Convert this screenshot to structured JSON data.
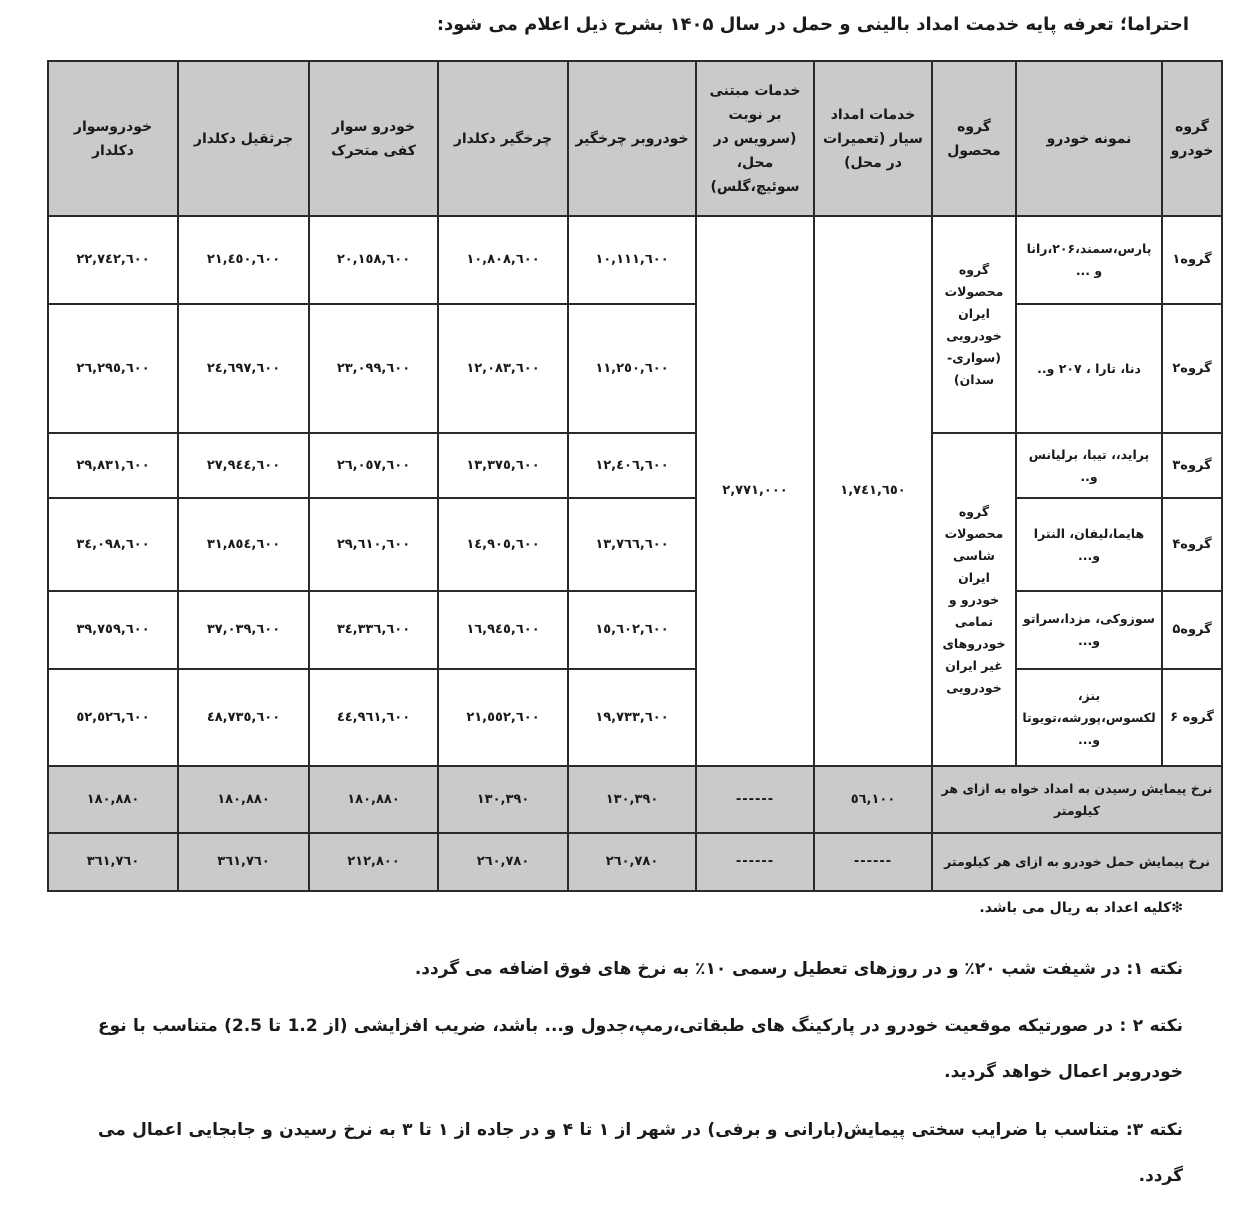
{
  "title": "احتراما؛ تعرفه پایه خدمت امداد بالینی و حمل در سال ۱۴۰۵ بشرح ذیل اعلام می شود:",
  "table": {
    "headers": [
      "گروه خودرو",
      "نمونه خودرو",
      "گروه محصول",
      "خدمات امداد سیار (تعمیرات در محل)",
      "خدمات مبتنی بر نوبت (سرویس در محل، سوئیچ،گلس)",
      "خودروبر چرخگیر",
      "چرخگیر دکلدار",
      "خودرو سوار کفی متحرک",
      "جرثقیل دکلدار",
      "خودروسوار دکلدار"
    ],
    "product_groups": [
      "گروه محصولات ایران خودرویی (سواری- سدان)",
      "گروه محصولات شاسی ایران خودرو و تمامی خودروهای غیر ایران خودرویی"
    ],
    "mobile_service": "١,٧٤١,٦٥٠",
    "scheduled_service": "٢,٧٧١,٠٠٠",
    "rows": [
      {
        "group": "گروه۱",
        "model": "پارس،سمند،۲۰۶،رانا و ...",
        "values": [
          "١٠,١١١,٦٠٠",
          "١٠,٨٠٨,٦٠٠",
          "٢٠,١٥٨,٦٠٠",
          "٢١,٤٥٠,٦٠٠",
          "٢٢,٧٤٢,٦٠٠"
        ]
      },
      {
        "group": "گروه۲",
        "model": "دنا، تارا ، ۲۰۷ و..",
        "values": [
          "١١,٢٥٠,٦٠٠",
          "١٢,٠٨٣,٦٠٠",
          "٢٣,٠٩٩,٦٠٠",
          "٢٤,٦٩٧,٦٠٠",
          "٢٦,٢٩٥,٦٠٠"
        ]
      },
      {
        "group": "گروه۳",
        "model": "پراید،، تیبا، برلیانس و..",
        "values": [
          "١٢,٤٠٦,٦٠٠",
          "١٣,٣٧٥,٦٠٠",
          "٢٦,٠٥٧,٦٠٠",
          "٢٧,٩٤٤,٦٠٠",
          "٢٩,٨٣١,٦٠٠"
        ]
      },
      {
        "group": "گروه۴",
        "model": "هایما،لیفان، النترا و...",
        "values": [
          "١٣,٧٦٦,٦٠٠",
          "١٤,٩٠٥,٦٠٠",
          "٢٩,٦١٠,٦٠٠",
          "٣١,٨٥٤,٦٠٠",
          "٣٤,٠٩٨,٦٠٠"
        ]
      },
      {
        "group": "گروه۵",
        "model": "سوزوکی، مزدا،سراتو و...",
        "values": [
          "١٥,٦٠٢,٦٠٠",
          "١٦,٩٤٥,٦٠٠",
          "٣٤,٣٣٦,٦٠٠",
          "٣٧,٠٣٩,٦٠٠",
          "٣٩,٧٥٩,٦٠٠"
        ]
      },
      {
        "group": "گروه ۶",
        "model": "بنز، لکسوس،پورشه،تویوتا و...",
        "values": [
          "١٩,٧٣٣,٦٠٠",
          "٢١,٥٥٢,٦٠٠",
          "٤٤,٩٦١,٦٠٠",
          "٤٨,٧٣٥,٦٠٠",
          "٥٢,٥٢٦,٦٠٠"
        ]
      }
    ],
    "rates": [
      {
        "label": "نرخ پیمایش رسیدن به امداد خواه به ازای هر کیلومتر",
        "mobile": "٥٦,١٠٠",
        "scheduled": "------",
        "values": [
          "١٣٠,٣٩٠",
          "١٣٠,٣٩٠",
          "١٨٠,٨٨٠",
          "١٨٠,٨٨٠",
          "١٨٠,٨٨٠"
        ]
      },
      {
        "label": "نرخ پیمایش حمل خودرو به ازای هر کیلومتر",
        "mobile": "------",
        "scheduled": "------",
        "values": [
          "٢٦٠,٧٨٠",
          "٢٦٠,٧٨٠",
          "٢١٢,٨٠٠",
          "٣٦١,٧٦٠",
          "٣٦١,٧٦٠"
        ]
      }
    ]
  },
  "footnote": "❇کلیه اعداد به ریال می باشد.",
  "notes": [
    "نکته ۱: در شیفت شب ۲۰٪ و در روزهای تعطیل رسمی ۱۰٪ به نرخ های فوق اضافه می گردد.",
    "نکته ۲ : در صورتیکه موقعیت خودرو در پارکینگ های طبقاتی،رمپ،جدول و... باشد، ضریب افزایشی (از 1.2 تا 2.5) متناسب با نوع خودروبر اعمال خواهد گردید.",
    "نکته ۳: متناسب با ضرایب سختی پیمایش(بارانی و برفی) در شهر از ۱ تا ۴ و در جاده از ۱ تا ۳ به نرخ رسیدن و جابجایی اعمال می گردد."
  ],
  "colors": {
    "header_bg": "#c8cacc",
    "border": "#2a2a2a"
  }
}
